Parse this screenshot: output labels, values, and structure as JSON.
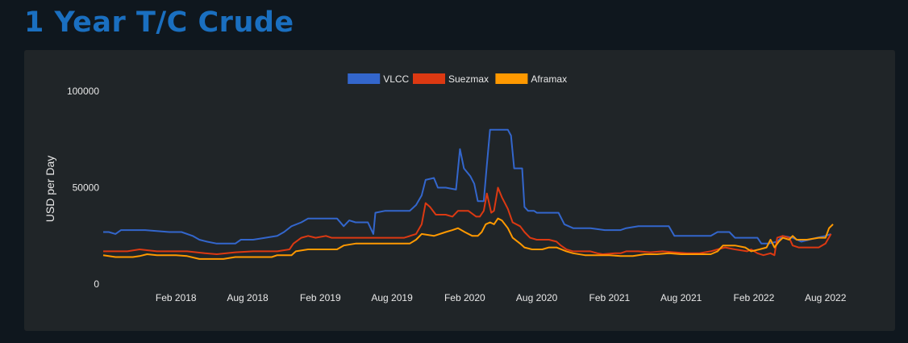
{
  "page": {
    "title": "1 Year T/C Crude"
  },
  "colors": {
    "vlcc": "#3366cc",
    "suezmax": "#dc3912",
    "aframax": "#ff9900",
    "title": "#1a6fc0"
  },
  "chart_data": {
    "type": "line",
    "title": "",
    "xlabel": "",
    "ylabel": "USD per Day",
    "ylim": [
      0,
      100000
    ],
    "yticks": [
      0,
      50000,
      100000
    ],
    "xlim": [
      "2017-09",
      "2022-09"
    ],
    "x_tick_labels": [
      "Feb 2018",
      "Aug 2018",
      "Feb 2019",
      "Aug 2019",
      "Feb 2020",
      "Aug 2020",
      "Feb 2021",
      "Aug 2021",
      "Feb 2022",
      "Aug 2022"
    ],
    "x_tick_dates": [
      "2018-02",
      "2018-08",
      "2019-02",
      "2019-08",
      "2020-02",
      "2020-08",
      "2021-02",
      "2021-08",
      "2022-02",
      "2022-08"
    ],
    "legend_position": "top-center",
    "grid": false,
    "series": [
      {
        "name": "VLCC",
        "color": "#3366cc",
        "points": [
          [
            "2017-08-01",
            27000
          ],
          [
            "2017-08-15",
            27000
          ],
          [
            "2017-09-01",
            26000
          ],
          [
            "2017-09-15",
            28000
          ],
          [
            "2017-10-15",
            28000
          ],
          [
            "2017-11-15",
            28000
          ],
          [
            "2018-01-15",
            27000
          ],
          [
            "2018-02-15",
            27000
          ],
          [
            "2018-03-15",
            25000
          ],
          [
            "2018-04-01",
            23000
          ],
          [
            "2018-04-20",
            22000
          ],
          [
            "2018-05-15",
            21000
          ],
          [
            "2018-07-01",
            21000
          ],
          [
            "2018-07-15",
            23000
          ],
          [
            "2018-08-15",
            23000
          ],
          [
            "2018-09-15",
            24000
          ],
          [
            "2018-10-15",
            25000
          ],
          [
            "2018-11-01",
            27000
          ],
          [
            "2018-11-20",
            30000
          ],
          [
            "2018-12-15",
            32000
          ],
          [
            "2019-01-01",
            34000
          ],
          [
            "2019-02-01",
            34000
          ],
          [
            "2019-03-15",
            34000
          ],
          [
            "2019-04-01",
            30000
          ],
          [
            "2019-04-15",
            33000
          ],
          [
            "2019-05-01",
            32000
          ],
          [
            "2019-06-01",
            32000
          ],
          [
            "2019-06-15",
            26000
          ],
          [
            "2019-06-20",
            37000
          ],
          [
            "2019-07-15",
            38000
          ],
          [
            "2019-08-15",
            38000
          ],
          [
            "2019-09-15",
            38000
          ],
          [
            "2019-10-01",
            41000
          ],
          [
            "2019-10-15",
            46000
          ],
          [
            "2019-10-25",
            54000
          ],
          [
            "2019-11-15",
            55000
          ],
          [
            "2019-11-25",
            50000
          ],
          [
            "2019-12-15",
            50000
          ],
          [
            "2020-01-10",
            49000
          ],
          [
            "2020-01-20",
            70000
          ],
          [
            "2020-01-30",
            60000
          ],
          [
            "2020-02-15",
            56000
          ],
          [
            "2020-02-25",
            52000
          ],
          [
            "2020-03-05",
            43000
          ],
          [
            "2020-03-20",
            43000
          ],
          [
            "2020-03-28",
            62000
          ],
          [
            "2020-04-05",
            80000
          ],
          [
            "2020-04-25",
            80000
          ],
          [
            "2020-05-20",
            80000
          ],
          [
            "2020-05-28",
            77000
          ],
          [
            "2020-06-05",
            60000
          ],
          [
            "2020-06-25",
            60000
          ],
          [
            "2020-07-01",
            40000
          ],
          [
            "2020-07-10",
            38000
          ],
          [
            "2020-07-25",
            38000
          ],
          [
            "2020-08-01",
            37000
          ],
          [
            "2020-09-10",
            37000
          ],
          [
            "2020-09-25",
            37000
          ],
          [
            "2020-10-10",
            31000
          ],
          [
            "2020-11-01",
            29000
          ],
          [
            "2020-12-15",
            29000
          ],
          [
            "2021-01-20",
            28000
          ],
          [
            "2021-03-01",
            28000
          ],
          [
            "2021-03-15",
            29000
          ],
          [
            "2021-04-15",
            30000
          ],
          [
            "2021-05-01",
            30000
          ],
          [
            "2021-07-01",
            30000
          ],
          [
            "2021-07-15",
            25000
          ],
          [
            "2021-09-01",
            25000
          ],
          [
            "2021-10-15",
            25000
          ],
          [
            "2021-11-01",
            27000
          ],
          [
            "2021-12-01",
            27000
          ],
          [
            "2021-12-15",
            24000
          ],
          [
            "2022-02-10",
            24000
          ],
          [
            "2022-02-20",
            21000
          ],
          [
            "2022-03-10",
            21000
          ],
          [
            "2022-04-01",
            22000
          ],
          [
            "2022-04-15",
            25000
          ],
          [
            "2022-05-10",
            24000
          ],
          [
            "2022-06-01",
            22000
          ],
          [
            "2022-07-10",
            24000
          ],
          [
            "2022-08-01",
            25000
          ],
          [
            "2022-08-15",
            26000
          ]
        ]
      },
      {
        "name": "Suezmax",
        "color": "#dc3912",
        "points": [
          [
            "2017-08-01",
            17000
          ],
          [
            "2017-10-01",
            17000
          ],
          [
            "2017-11-01",
            18000
          ],
          [
            "2017-12-15",
            17000
          ],
          [
            "2018-03-01",
            17000
          ],
          [
            "2018-04-15",
            16000
          ],
          [
            "2018-05-15",
            15500
          ],
          [
            "2018-07-01",
            16500
          ],
          [
            "2018-08-15",
            17000
          ],
          [
            "2018-10-15",
            17000
          ],
          [
            "2018-11-15",
            18000
          ],
          [
            "2018-11-25",
            21000
          ],
          [
            "2018-12-15",
            24000
          ],
          [
            "2019-01-01",
            25000
          ],
          [
            "2019-01-20",
            24000
          ],
          [
            "2019-02-15",
            25000
          ],
          [
            "2019-03-01",
            24000
          ],
          [
            "2019-05-01",
            24000
          ],
          [
            "2019-06-01",
            24000
          ],
          [
            "2019-07-01",
            24000
          ],
          [
            "2019-08-01",
            24000
          ],
          [
            "2019-09-01",
            24000
          ],
          [
            "2019-10-01",
            26000
          ],
          [
            "2019-10-15",
            31000
          ],
          [
            "2019-10-25",
            42000
          ],
          [
            "2019-11-05",
            40000
          ],
          [
            "2019-11-20",
            36000
          ],
          [
            "2019-12-15",
            36000
          ],
          [
            "2020-01-01",
            35000
          ],
          [
            "2020-01-15",
            38000
          ],
          [
            "2020-02-10",
            38000
          ],
          [
            "2020-03-01",
            35000
          ],
          [
            "2020-03-10",
            35000
          ],
          [
            "2020-03-20",
            38000
          ],
          [
            "2020-03-28",
            47000
          ],
          [
            "2020-04-08",
            37000
          ],
          [
            "2020-04-15",
            38000
          ],
          [
            "2020-04-25",
            50000
          ],
          [
            "2020-05-05",
            45000
          ],
          [
            "2020-05-20",
            39000
          ],
          [
            "2020-06-01",
            32000
          ],
          [
            "2020-06-20",
            30000
          ],
          [
            "2020-07-01",
            27000
          ],
          [
            "2020-07-15",
            24000
          ],
          [
            "2020-08-01",
            23000
          ],
          [
            "2020-09-01",
            23000
          ],
          [
            "2020-09-20",
            22000
          ],
          [
            "2020-10-01",
            20000
          ],
          [
            "2020-10-15",
            18000
          ],
          [
            "2020-11-01",
            17000
          ],
          [
            "2020-12-15",
            17000
          ],
          [
            "2021-01-01",
            16000
          ],
          [
            "2021-01-15",
            15500
          ],
          [
            "2021-02-15",
            16000
          ],
          [
            "2021-03-01",
            16000
          ],
          [
            "2021-03-15",
            17000
          ],
          [
            "2021-04-15",
            17000
          ],
          [
            "2021-05-15",
            16500
          ],
          [
            "2021-06-15",
            17000
          ],
          [
            "2021-07-15",
            16500
          ],
          [
            "2021-08-15",
            16000
          ],
          [
            "2021-09-15",
            16000
          ],
          [
            "2021-10-15",
            17000
          ],
          [
            "2021-11-01",
            18000
          ],
          [
            "2021-11-20",
            19000
          ],
          [
            "2021-12-15",
            18000
          ],
          [
            "2022-01-15",
            17000
          ],
          [
            "2022-01-25",
            18000
          ],
          [
            "2022-02-10",
            16000
          ],
          [
            "2022-02-25",
            15000
          ],
          [
            "2022-03-15",
            16000
          ],
          [
            "2022-03-25",
            15000
          ],
          [
            "2022-04-01",
            24000
          ],
          [
            "2022-04-15",
            25000
          ],
          [
            "2022-05-01",
            24000
          ],
          [
            "2022-05-10",
            20000
          ],
          [
            "2022-05-25",
            19000
          ],
          [
            "2022-07-15",
            19000
          ],
          [
            "2022-08-01",
            21000
          ],
          [
            "2022-08-15",
            26000
          ]
        ]
      },
      {
        "name": "Aframax",
        "color": "#ff9900",
        "points": [
          [
            "2017-08-01",
            15000
          ],
          [
            "2017-09-01",
            14000
          ],
          [
            "2017-10-15",
            14000
          ],
          [
            "2017-11-01",
            14500
          ],
          [
            "2017-11-20",
            15500
          ],
          [
            "2017-12-15",
            15000
          ],
          [
            "2018-02-01",
            15000
          ],
          [
            "2018-03-01",
            14500
          ],
          [
            "2018-04-01",
            13000
          ],
          [
            "2018-06-01",
            13000
          ],
          [
            "2018-07-01",
            14000
          ],
          [
            "2018-08-15",
            14000
          ],
          [
            "2018-10-01",
            14000
          ],
          [
            "2018-10-15",
            15000
          ],
          [
            "2018-11-20",
            15000
          ],
          [
            "2018-12-01",
            17000
          ],
          [
            "2019-01-01",
            18000
          ],
          [
            "2019-02-01",
            18000
          ],
          [
            "2019-03-15",
            18000
          ],
          [
            "2019-04-01",
            20000
          ],
          [
            "2019-05-01",
            21000
          ],
          [
            "2019-06-01",
            21000
          ],
          [
            "2019-07-15",
            21000
          ],
          [
            "2019-08-15",
            21000
          ],
          [
            "2019-09-15",
            21000
          ],
          [
            "2019-10-01",
            23000
          ],
          [
            "2019-10-15",
            26000
          ],
          [
            "2019-11-15",
            25000
          ],
          [
            "2019-12-15",
            27000
          ],
          [
            "2020-01-01",
            28000
          ],
          [
            "2020-01-15",
            29000
          ],
          [
            "2020-02-01",
            27000
          ],
          [
            "2020-02-20",
            25000
          ],
          [
            "2020-03-05",
            25000
          ],
          [
            "2020-03-15",
            27000
          ],
          [
            "2020-03-25",
            31000
          ],
          [
            "2020-04-05",
            32000
          ],
          [
            "2020-04-15",
            31000
          ],
          [
            "2020-04-25",
            34000
          ],
          [
            "2020-05-05",
            33000
          ],
          [
            "2020-05-20",
            29000
          ],
          [
            "2020-06-01",
            24000
          ],
          [
            "2020-06-20",
            21000
          ],
          [
            "2020-07-01",
            19000
          ],
          [
            "2020-07-20",
            18000
          ],
          [
            "2020-08-15",
            18000
          ],
          [
            "2020-09-01",
            19000
          ],
          [
            "2020-09-20",
            19000
          ],
          [
            "2020-10-15",
            17000
          ],
          [
            "2020-11-01",
            16000
          ],
          [
            "2020-12-01",
            15000
          ],
          [
            "2021-02-01",
            15000
          ],
          [
            "2021-03-01",
            14500
          ],
          [
            "2021-04-01",
            14500
          ],
          [
            "2021-05-01",
            15500
          ],
          [
            "2021-06-01",
            15500
          ],
          [
            "2021-07-01",
            16000
          ],
          [
            "2021-08-01",
            15500
          ],
          [
            "2021-10-15",
            15500
          ],
          [
            "2021-11-01",
            17000
          ],
          [
            "2021-11-15",
            20000
          ],
          [
            "2021-12-15",
            20000
          ],
          [
            "2022-01-10",
            19000
          ],
          [
            "2022-01-25",
            17000
          ],
          [
            "2022-02-15",
            18000
          ],
          [
            "2022-03-05",
            19000
          ],
          [
            "2022-03-15",
            23000
          ],
          [
            "2022-03-25",
            19000
          ],
          [
            "2022-04-05",
            22000
          ],
          [
            "2022-04-15",
            24000
          ],
          [
            "2022-05-01",
            23000
          ],
          [
            "2022-05-10",
            25000
          ],
          [
            "2022-05-20",
            23000
          ],
          [
            "2022-06-15",
            23000
          ],
          [
            "2022-07-15",
            24000
          ],
          [
            "2022-08-01",
            24000
          ],
          [
            "2022-08-10",
            29000
          ],
          [
            "2022-08-20",
            31000
          ]
        ]
      }
    ]
  }
}
